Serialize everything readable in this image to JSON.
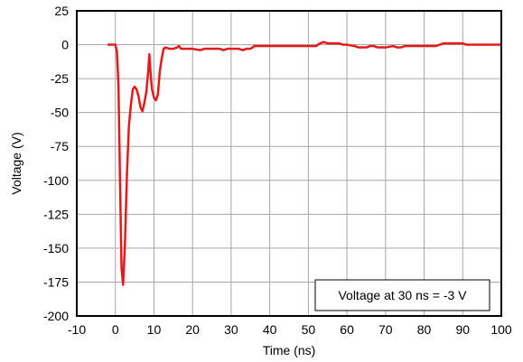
{
  "chart_data": {
    "type": "line",
    "xlabel": "Time (ns)",
    "ylabel": "Voltage (V)",
    "xlim": [
      -10,
      100
    ],
    "ylim": [
      -200,
      25
    ],
    "x_ticks": [
      -10,
      0,
      10,
      20,
      30,
      40,
      50,
      60,
      70,
      80,
      90,
      100
    ],
    "y_ticks": [
      25,
      0,
      -25,
      -50,
      -75,
      -100,
      -125,
      -150,
      -175,
      -200
    ],
    "x_tick_labels": [
      "-10",
      "0",
      "10",
      "20",
      "30",
      "40",
      "50",
      "60",
      "70",
      "80",
      "90",
      "100"
    ],
    "y_tick_labels": [
      "25",
      "0",
      "-25",
      "-50",
      "-75",
      "-100",
      "-125",
      "-150",
      "-175",
      "-200"
    ],
    "grid": true,
    "annotation": "Voltage at 30 ns = -3 V",
    "series": [
      {
        "color": "#e31a1c",
        "points": [
          [
            -2,
            0
          ],
          [
            0,
            0
          ],
          [
            0.4,
            -5
          ],
          [
            0.8,
            -30
          ],
          [
            1.2,
            -100
          ],
          [
            1.6,
            -165
          ],
          [
            2,
            -177
          ],
          [
            2.5,
            -145
          ],
          [
            3,
            -95
          ],
          [
            3.5,
            -60
          ],
          [
            4,
            -45
          ],
          [
            4.5,
            -33
          ],
          [
            5,
            -31
          ],
          [
            5.5,
            -33
          ],
          [
            6,
            -38
          ],
          [
            6.5,
            -46
          ],
          [
            7,
            -49
          ],
          [
            7.5,
            -43
          ],
          [
            8,
            -35
          ],
          [
            8.5,
            -20
          ],
          [
            8.8,
            -7
          ],
          [
            9.1,
            -20
          ],
          [
            9.5,
            -33
          ],
          [
            10,
            -39
          ],
          [
            10.5,
            -41
          ],
          [
            11,
            -37
          ],
          [
            11.5,
            -20
          ],
          [
            12,
            -10
          ],
          [
            12.5,
            -3
          ],
          [
            13,
            -2
          ],
          [
            14,
            -3
          ],
          [
            15,
            -3
          ],
          [
            16,
            -2
          ],
          [
            16.5,
            -1
          ],
          [
            17,
            -3
          ],
          [
            18,
            -3
          ],
          [
            20,
            -3
          ],
          [
            22,
            -4
          ],
          [
            23,
            -3
          ],
          [
            25,
            -3
          ],
          [
            27,
            -3
          ],
          [
            28,
            -4
          ],
          [
            29,
            -3
          ],
          [
            30,
            -3
          ],
          [
            32,
            -3
          ],
          [
            33,
            -4
          ],
          [
            34,
            -3
          ],
          [
            35,
            -3
          ],
          [
            36,
            -1
          ],
          [
            40,
            -1
          ],
          [
            45,
            -1
          ],
          [
            50,
            -1
          ],
          [
            52,
            -1
          ],
          [
            53,
            1
          ],
          [
            54,
            2
          ],
          [
            55,
            1
          ],
          [
            58,
            1
          ],
          [
            59,
            0
          ],
          [
            60,
            0
          ],
          [
            62,
            -1
          ],
          [
            63,
            -2
          ],
          [
            64,
            -2
          ],
          [
            65,
            -2
          ],
          [
            66,
            -1
          ],
          [
            67,
            -1
          ],
          [
            68,
            -2
          ],
          [
            70,
            -2
          ],
          [
            72,
            -1
          ],
          [
            73,
            -2
          ],
          [
            74,
            -2
          ],
          [
            75,
            -1
          ],
          [
            80,
            -1
          ],
          [
            83,
            -1
          ],
          [
            84,
            0
          ],
          [
            85,
            1
          ],
          [
            90,
            1
          ],
          [
            91,
            0
          ],
          [
            95,
            0
          ],
          [
            100,
            0
          ]
        ]
      }
    ]
  }
}
